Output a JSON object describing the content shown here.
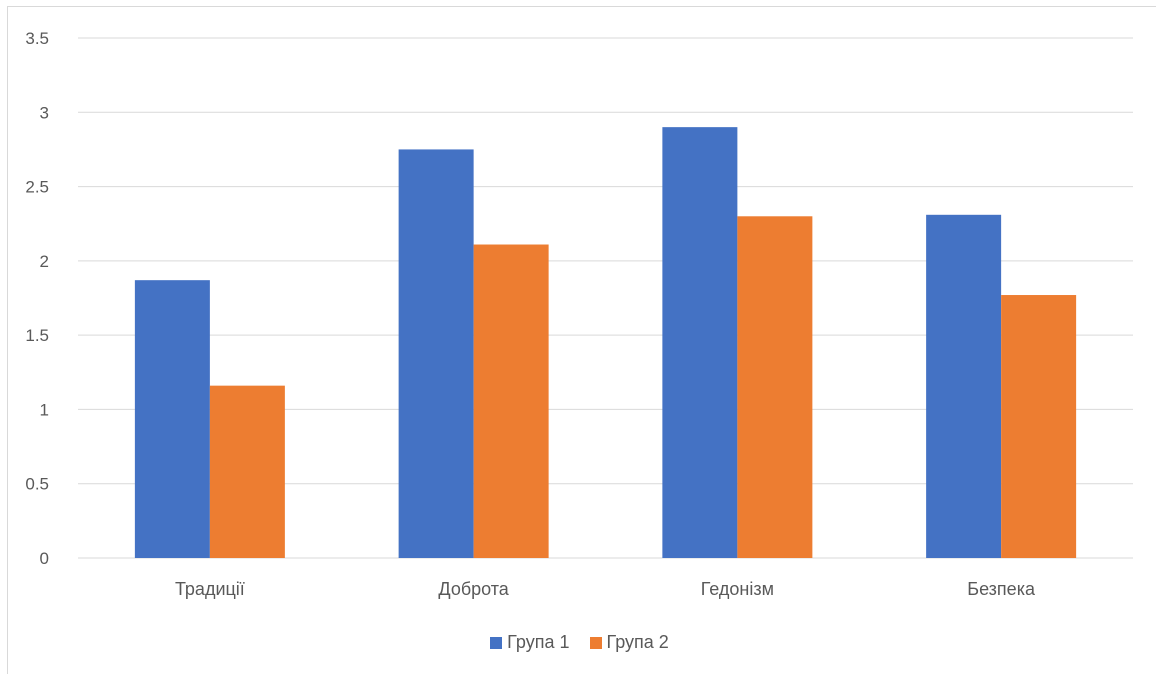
{
  "chart_data": {
    "type": "bar",
    "categories": [
      "Традиції",
      "Доброта",
      "Гедонізм",
      "Безпека"
    ],
    "series": [
      {
        "name": "Група 1",
        "values": [
          1.87,
          2.75,
          2.9,
          2.31
        ],
        "color": "#4472c4"
      },
      {
        "name": "Група 2",
        "values": [
          1.16,
          2.11,
          2.3,
          1.77
        ],
        "color": "#ed7d31"
      }
    ],
    "title": "",
    "xlabel": "",
    "ylabel": "",
    "ylim": [
      0,
      3.5
    ],
    "yticks": [
      "0",
      "0.5",
      "1",
      "1.5",
      "2",
      "2.5",
      "3",
      "3.5"
    ],
    "grid": true,
    "gridline_color": "#d9d9d9",
    "legend_position": "bottom"
  }
}
